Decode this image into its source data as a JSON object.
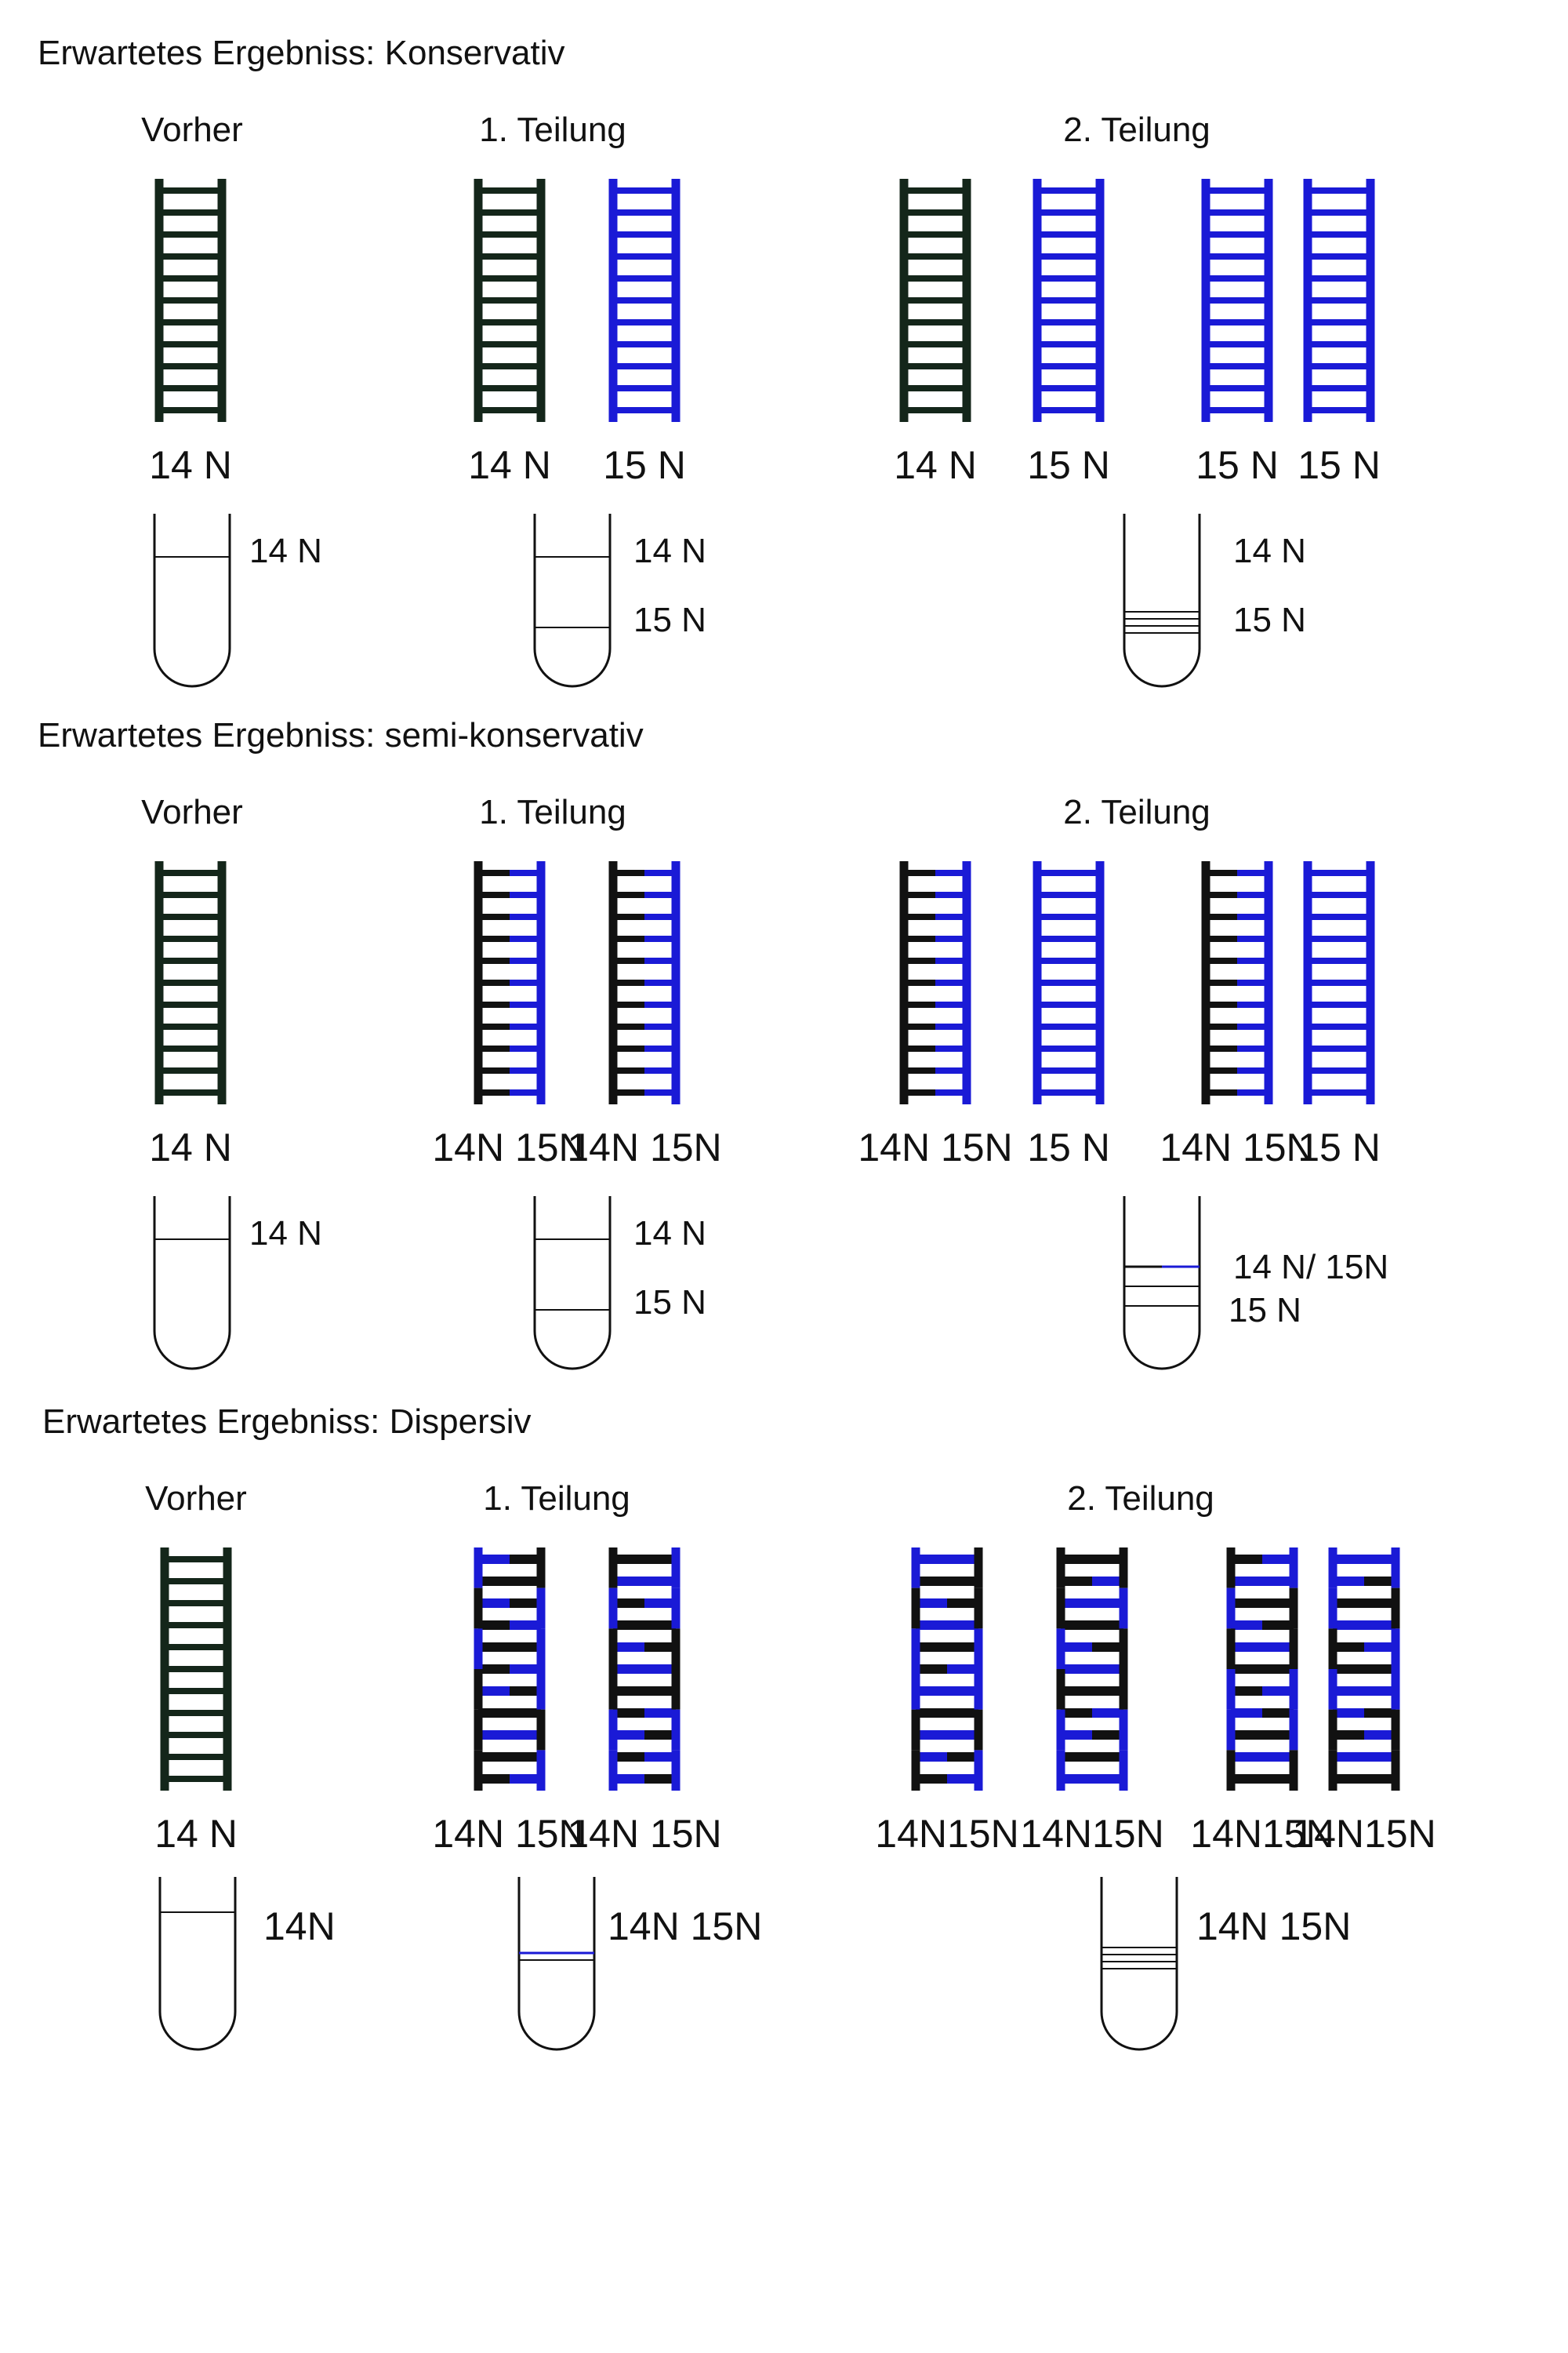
{
  "colors": {
    "n14": "#111111",
    "n15": "#1a1ad6",
    "n14_dark": "#14261a",
    "tube": "#111111"
  },
  "sections": [
    {
      "title": "Erwartetes Ergebniss: Konservativ",
      "heads": [
        "Vorher",
        "1. Teilung",
        "2. Teilung"
      ],
      "molecules": [
        {
          "strands": "dark",
          "label": "14 N"
        },
        {
          "strands": "dark",
          "label": "14 N"
        },
        {
          "strands": "blue",
          "label": "15 N"
        },
        {
          "strands": "dark",
          "label": "14 N"
        },
        {
          "strands": "blue",
          "label": "15 N"
        },
        {
          "strands": "blue",
          "label": "15 N"
        },
        {
          "strands": "blue",
          "label": "15 N"
        }
      ],
      "tubes": [
        {
          "bands": [
            "14N"
          ],
          "labels": [
            "14 N"
          ]
        },
        {
          "bands": [
            "14N",
            "15N"
          ],
          "labels": [
            "14 N",
            "15 N"
          ]
        },
        {
          "bands": [
            "14N",
            "15N",
            "15N",
            "15N"
          ],
          "labels": [
            "14 N",
            "15 N"
          ]
        }
      ]
    },
    {
      "title": "Erwartetes Ergebniss: semi-konservativ",
      "heads": [
        "Vorher",
        "1. Teilung",
        "2. Teilung"
      ],
      "molecules": [
        {
          "strands": "dark",
          "label": "14 N"
        },
        {
          "strands": "hybrid",
          "label": "14N 15N"
        },
        {
          "strands": "hybrid",
          "label": "14N 15N"
        },
        {
          "strands": "hybrid",
          "label": "14N 15N"
        },
        {
          "strands": "blue",
          "label": "15 N"
        },
        {
          "strands": "hybrid",
          "label": "14N 15N"
        },
        {
          "strands": "blue",
          "label": "15 N"
        }
      ],
      "tubes": [
        {
          "bands": [
            "14N"
          ],
          "labels": [
            "14 N"
          ]
        },
        {
          "bands": [
            "14N",
            "15N"
          ],
          "labels": [
            "14 N",
            "15 N"
          ]
        },
        {
          "bands": [
            "14N/15N",
            "15N",
            "15N"
          ],
          "labels": [
            "14 N/ 15N",
            "15 N"
          ]
        }
      ]
    },
    {
      "title": "Erwartetes Ergebniss: Dispersiv",
      "heads": [
        "Vorher",
        "1. Teilung",
        "2. Teilung"
      ],
      "molecules": [
        {
          "strands": "dark",
          "label": "14 N"
        },
        {
          "strands": "dispersed",
          "label": "14N 15N"
        },
        {
          "strands": "dispersed",
          "label": "14N 15N"
        },
        {
          "strands": "dispersed",
          "label": "14N15N"
        },
        {
          "strands": "dispersed",
          "label": "14N15N"
        },
        {
          "strands": "dispersed",
          "label": "14N15N"
        },
        {
          "strands": "dispersed",
          "label": "14N15N"
        }
      ],
      "tubes": [
        {
          "bands": [
            "14N"
          ],
          "labels": [
            "14N"
          ]
        },
        {
          "bands": [
            "14N15N"
          ],
          "labels": [
            "14N 15N"
          ]
        },
        {
          "bands": [
            "14N15N",
            "14N15N",
            "14N15N",
            "14N15N"
          ],
          "labels": [
            "14N 15N"
          ]
        }
      ]
    }
  ]
}
